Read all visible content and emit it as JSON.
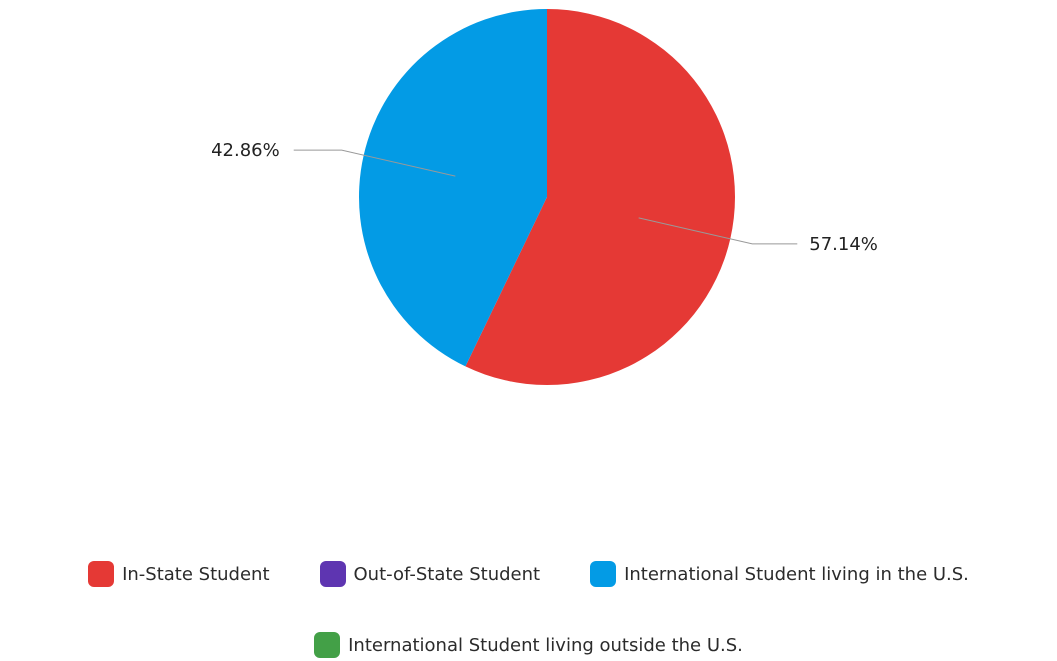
{
  "chart_data": {
    "type": "pie",
    "title": "",
    "slices": [
      {
        "name": "In-State Student",
        "value": 57.14,
        "label": "57.14%",
        "color": "#e53935"
      },
      {
        "name": "Out-of-State Student",
        "value": 0,
        "label": "",
        "color": "#5e35b1"
      },
      {
        "name": "International Student living in the U.S.",
        "value": 42.86,
        "label": "42.86%",
        "color": "#039be5"
      },
      {
        "name": "International Student living outside the U.S.",
        "value": 0,
        "label": "",
        "color": "#43a047"
      }
    ],
    "legend_position": "bottom",
    "legend_rows": [
      [
        0,
        1,
        2
      ],
      [
        3
      ]
    ]
  },
  "colors": {
    "background": "#ffffff",
    "leader_line": "#999999"
  }
}
